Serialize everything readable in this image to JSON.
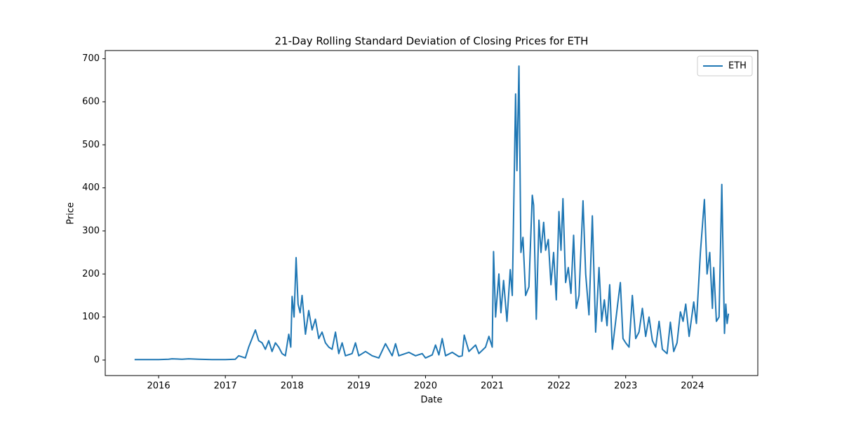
{
  "chart_data": {
    "type": "line",
    "title": "21-Day Rolling Standard Deviation of Closing Prices for ETH",
    "x_label": "Date",
    "y_label": "Price",
    "legend": "upper right",
    "x": [
      2015.64,
      2015.8,
      2016.0,
      2016.15,
      2016.2,
      2016.35,
      2016.45,
      2016.6,
      2016.8,
      2017.0,
      2017.15,
      2017.2,
      2017.3,
      2017.35,
      2017.4,
      2017.45,
      2017.5,
      2017.55,
      2017.6,
      2017.65,
      2017.7,
      2017.75,
      2017.8,
      2017.85,
      2017.9,
      2017.95,
      2017.98,
      2018.0,
      2018.03,
      2018.06,
      2018.09,
      2018.12,
      2018.15,
      2018.2,
      2018.25,
      2018.3,
      2018.35,
      2018.4,
      2018.45,
      2018.5,
      2018.55,
      2018.6,
      2018.65,
      2018.7,
      2018.75,
      2018.8,
      2018.9,
      2018.95,
      2019.0,
      2019.1,
      2019.2,
      2019.3,
      2019.4,
      2019.5,
      2019.55,
      2019.6,
      2019.75,
      2019.85,
      2019.95,
      2020.0,
      2020.1,
      2020.15,
      2020.2,
      2020.25,
      2020.3,
      2020.4,
      2020.5,
      2020.55,
      2020.58,
      2020.65,
      2020.75,
      2020.8,
      2020.9,
      2020.95,
      2021.0,
      2021.02,
      2021.05,
      2021.1,
      2021.13,
      2021.17,
      2021.22,
      2021.27,
      2021.3,
      2021.35,
      2021.37,
      2021.4,
      2021.43,
      2021.46,
      2021.5,
      2021.55,
      2021.6,
      2021.62,
      2021.66,
      2021.7,
      2021.73,
      2021.77,
      2021.8,
      2021.84,
      2021.88,
      2021.92,
      2021.96,
      2022.0,
      2022.03,
      2022.06,
      2022.1,
      2022.14,
      2022.18,
      2022.22,
      2022.26,
      2022.3,
      2022.36,
      2022.4,
      2022.45,
      2022.5,
      2022.55,
      2022.6,
      2022.64,
      2022.68,
      2022.72,
      2022.76,
      2022.8,
      2022.88,
      2022.92,
      2022.96,
      2023.0,
      2023.05,
      2023.1,
      2023.15,
      2023.2,
      2023.25,
      2023.3,
      2023.35,
      2023.4,
      2023.45,
      2023.5,
      2023.55,
      2023.62,
      2023.67,
      2023.72,
      2023.77,
      2023.82,
      2023.86,
      2023.9,
      2023.95,
      2024.02,
      2024.06,
      2024.12,
      2024.18,
      2024.22,
      2024.26,
      2024.3,
      2024.32,
      2024.36,
      2024.4,
      2024.44,
      2024.48,
      2024.5,
      2024.52,
      2024.54
    ],
    "series": [
      {
        "name": "ETH",
        "color": "#1f77b4",
        "values": [
          1,
          1,
          1,
          2,
          3,
          2,
          3,
          2,
          1,
          1,
          2,
          10,
          5,
          30,
          50,
          70,
          45,
          40,
          25,
          45,
          20,
          40,
          30,
          15,
          10,
          60,
          30,
          148,
          100,
          238,
          130,
          110,
          150,
          60,
          115,
          70,
          95,
          50,
          65,
          40,
          30,
          25,
          65,
          15,
          40,
          10,
          15,
          40,
          10,
          20,
          10,
          5,
          38,
          10,
          38,
          10,
          18,
          10,
          15,
          5,
          12,
          35,
          12,
          50,
          10,
          18,
          8,
          10,
          58,
          20,
          35,
          15,
          30,
          55,
          30,
          252,
          100,
          200,
          110,
          185,
          90,
          210,
          150,
          618,
          440,
          683,
          250,
          285,
          150,
          170,
          383,
          360,
          95,
          325,
          250,
          320,
          255,
          280,
          175,
          250,
          140,
          345,
          255,
          375,
          180,
          215,
          155,
          290,
          120,
          150,
          370,
          200,
          105,
          335,
          65,
          215,
          90,
          140,
          80,
          175,
          25,
          130,
          180,
          50,
          40,
          30,
          150,
          50,
          65,
          120,
          55,
          100,
          45,
          30,
          90,
          25,
          15,
          88,
          20,
          40,
          112,
          90,
          130,
          55,
          135,
          85,
          250,
          373,
          200,
          250,
          120,
          215,
          90,
          100,
          408,
          62,
          130,
          85,
          108
        ]
      }
    ],
    "xlim": [
      2015.2,
      2024.98
    ],
    "xticks": [
      2016,
      2017,
      2018,
      2019,
      2020,
      2021,
      2022,
      2023,
      2024
    ],
    "ylim": [
      -36,
      719
    ],
    "yticks": [
      0,
      100,
      200,
      300,
      400,
      500,
      600,
      700
    ]
  }
}
